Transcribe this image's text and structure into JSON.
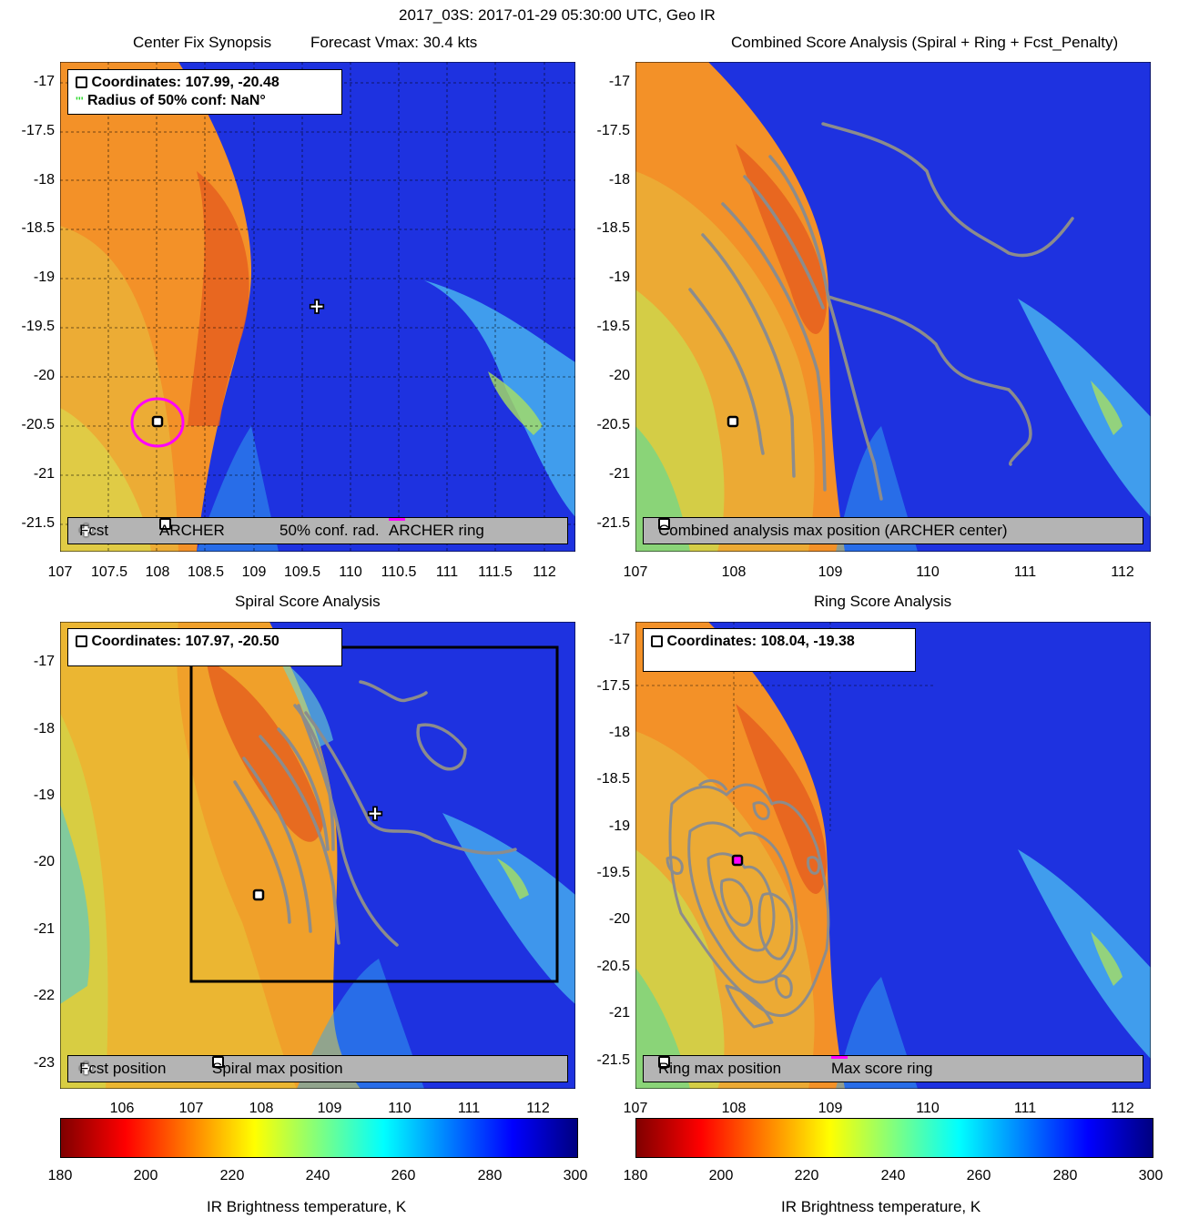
{
  "figure_title": "2017_03S: 2017-01-29 05:30:00 UTC, Geo IR",
  "panels": {
    "tl": {
      "title_left": "Center Fix Synopsis",
      "title_right": "Forecast Vmax: 30.4 kts",
      "info_line1": "Coordinates: 107.99, -20.48",
      "info_line2": "Radius of 50% conf: NaN°",
      "legend": [
        "Fcst",
        "ARCHER",
        "50% conf. rad.",
        "ARCHER ring"
      ],
      "yticks": [
        "-17",
        "-17.5",
        "-18",
        "-18.5",
        "-19",
        "-19.5",
        "-20",
        "-20.5",
        "-21",
        "-21.5"
      ],
      "xticks": [
        "107",
        "107.5",
        "108",
        "108.5",
        "109",
        "109.5",
        "110",
        "110.5",
        "111",
        "111.5",
        "112"
      ]
    },
    "tr": {
      "title": "Combined Score Analysis (Spiral + Ring + Fcst_Penalty)",
      "legend": [
        "Combined analysis max position (ARCHER center)"
      ],
      "yticks": [
        "-17",
        "-17.5",
        "-18",
        "-18.5",
        "-19",
        "-19.5",
        "-20",
        "-20.5",
        "-21",
        "-21.5"
      ],
      "xticks": [
        "107",
        "108",
        "109",
        "110",
        "111",
        "112"
      ]
    },
    "bl": {
      "title": "Spiral Score Analysis",
      "info_line1": "Coordinates: 107.97, -20.50",
      "legend": [
        "Fcst position",
        "Spiral max position"
      ],
      "yticks": [
        "-17",
        "-18",
        "-19",
        "-20",
        "-21",
        "-22",
        "-23"
      ],
      "xticks": [
        "106",
        "107",
        "108",
        "109",
        "110",
        "111",
        "112"
      ]
    },
    "br": {
      "title": "Ring Score Analysis",
      "info_line1": "Coordinates: 108.04, -19.38",
      "legend": [
        "Ring max position",
        "Max score ring"
      ],
      "yticks": [
        "-17",
        "-17.5",
        "-18",
        "-18.5",
        "-19",
        "-19.5",
        "-20",
        "-20.5",
        "-21",
        "-21.5"
      ],
      "xticks": [
        "107",
        "108",
        "109",
        "110",
        "111",
        "112"
      ]
    }
  },
  "colorbar": {
    "label": "IR Brightness temperature, K",
    "ticks": [
      "180",
      "200",
      "220",
      "240",
      "260",
      "280",
      "300"
    ],
    "range": [
      180,
      300
    ]
  },
  "colors": {
    "contour": "#8c8c8c",
    "ring": "#ff00ff",
    "legend_bg": "#b4b4b4"
  },
  "chart_data": [
    {
      "type": "heatmap",
      "title": "Center Fix Synopsis",
      "xlim": [
        107,
        112.3
      ],
      "ylim": [
        -21.8,
        -16.8
      ],
      "points": [
        {
          "name": "Fcst",
          "x": 109.65,
          "y": -19.28
        },
        {
          "name": "ARCHER",
          "x": 107.99,
          "y": -20.48
        }
      ]
    },
    {
      "type": "heatmap",
      "title": "Combined Score Analysis (Spiral + Ring + Fcst_Penalty)",
      "xlim": [
        107,
        112.3
      ],
      "ylim": [
        -21.8,
        -16.8
      ],
      "points": [
        {
          "name": "Combined analysis max position (ARCHER center)",
          "x": 107.99,
          "y": -20.48
        }
      ]
    },
    {
      "type": "heatmap",
      "title": "Spiral Score Analysis",
      "xlim": [
        105.2,
        112.6
      ],
      "ylim": [
        -23.4,
        -16.4
      ],
      "points": [
        {
          "name": "Fcst position",
          "x": 109.65,
          "y": -19.28
        },
        {
          "name": "Spiral max position",
          "x": 107.97,
          "y": -20.5
        }
      ]
    },
    {
      "type": "heatmap",
      "title": "Ring Score Analysis",
      "xlim": [
        107,
        112.3
      ],
      "ylim": [
        -21.8,
        -16.8
      ],
      "points": [
        {
          "name": "Ring max position",
          "x": 108.04,
          "y": -19.38
        }
      ]
    }
  ]
}
